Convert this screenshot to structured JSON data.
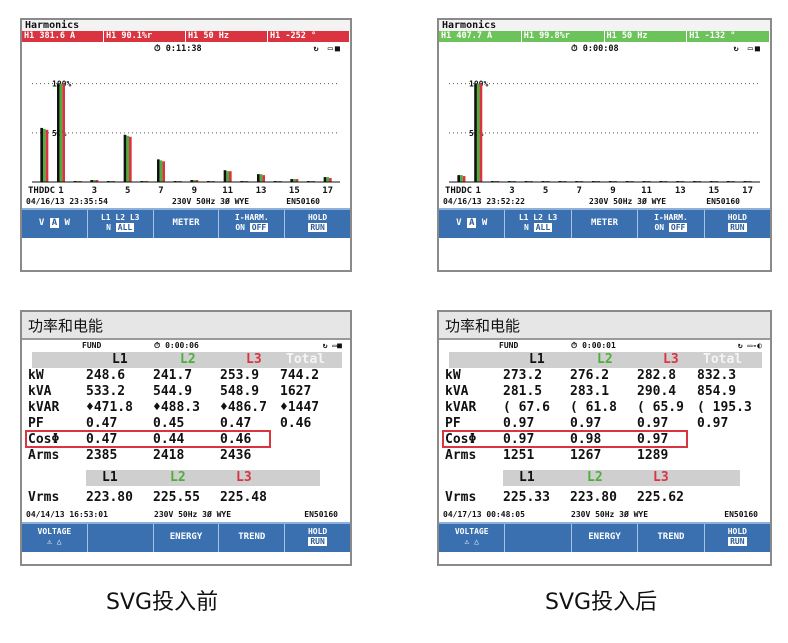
{
  "captions": {
    "before": "SVG投入前",
    "after": "SVG投入后"
  },
  "colors": {
    "l1": "#111111",
    "l2": "#4caf3a",
    "l3": "#d93440",
    "softkey_bg": "#3a6fb0",
    "before_bar": "#d93440",
    "after_bar": "#6cc35a"
  },
  "harmonics": [
    {
      "title": "Harmonics",
      "readings": [
        "H1  381.6 A",
        "H1   90.1%r",
        "H1    50 Hz",
        "H1   -252 °"
      ],
      "timer": "0:11:38",
      "status_icons": "↻ ▭■",
      "y_labels": [
        "100%",
        "50%"
      ],
      "x_labels": [
        "THDDC",
        "1",
        "3",
        "5",
        "7",
        "9",
        "11",
        "13",
        "15",
        "17"
      ],
      "date": "04/16/13  23:35:54",
      "config": "230V  50Hz 3Ø WYE",
      "standard": "EN50160",
      "chart_data": {
        "type": "bar",
        "categories": [
          "THDDC",
          "1",
          "2",
          "3",
          "4",
          "5",
          "6",
          "7",
          "8",
          "9",
          "10",
          "11",
          "12",
          "13",
          "14",
          "15",
          "16",
          "17"
        ],
        "ylim": [
          0,
          120
        ],
        "series": [
          {
            "name": "L1",
            "values": [
              55,
              100,
              1,
              2,
              1,
              48,
              1,
              23,
              1,
              2,
              1,
              12,
              1,
              8,
              1,
              3,
              1,
              5
            ]
          },
          {
            "name": "L2",
            "values": [
              54,
              100,
              1,
              2,
              1,
              47,
              1,
              22,
              1,
              2,
              1,
              11,
              1,
              8,
              1,
              3,
              1,
              5
            ]
          },
          {
            "name": "L3",
            "values": [
              53,
              100,
              1,
              2,
              1,
              46,
              1,
              21,
              1,
              2,
              1,
              11,
              1,
              7,
              1,
              3,
              1,
              4
            ]
          }
        ]
      },
      "softkeys": {
        "vaw": [
          "V",
          "A",
          "W"
        ],
        "phase_top": "L1 L2 L3",
        "phase_n": "N",
        "phase_all": "ALL",
        "meter": "METER",
        "iharm_top": "I-HARM.",
        "iharm_on": "ON",
        "iharm_off": "OFF",
        "hold_top": "HOLD",
        "hold_run": "RUN"
      }
    },
    {
      "title": "Harmonics",
      "readings": [
        "H1  407.7 A",
        "H1   99.8%r",
        "H1    50 Hz",
        "H1   -132 °"
      ],
      "timer": "0:00:08",
      "status_icons": "↻ ▭■",
      "y_labels": [
        "100%",
        "50%"
      ],
      "x_labels": [
        "THDDC",
        "1",
        "3",
        "5",
        "7",
        "9",
        "11",
        "13",
        "15",
        "17"
      ],
      "date": "04/16/13  23:52:22",
      "config": "230V  50Hz 3Ø WYE",
      "standard": "EN50160",
      "chart_data": {
        "type": "bar",
        "categories": [
          "THDDC",
          "1",
          "2",
          "3",
          "4",
          "5",
          "6",
          "7",
          "8",
          "9",
          "10",
          "11",
          "12",
          "13",
          "14",
          "15",
          "16",
          "17"
        ],
        "ylim": [
          0,
          120
        ],
        "series": [
          {
            "name": "L1",
            "values": [
              7,
              100,
              1,
              1,
              1,
              1,
              1,
              1,
              1,
              1,
              1,
              1,
              1,
              1,
              1,
              1,
              1,
              1
            ]
          },
          {
            "name": "L2",
            "values": [
              7,
              100,
              1,
              1,
              1,
              1,
              1,
              1,
              1,
              1,
              1,
              1,
              1,
              1,
              1,
              1,
              1,
              1
            ]
          },
          {
            "name": "L3",
            "values": [
              6,
              100,
              1,
              1,
              1,
              1,
              1,
              1,
              1,
              1,
              1,
              1,
              1,
              1,
              1,
              1,
              1,
              1
            ]
          }
        ]
      },
      "softkeys": {
        "vaw": [
          "V",
          "A",
          "W"
        ],
        "phase_top": "L1 L2 L3",
        "phase_n": "N",
        "phase_all": "ALL",
        "meter": "METER",
        "iharm_top": "I-HARM.",
        "iharm_on": "ON",
        "iharm_off": "OFF",
        "hold_top": "HOLD",
        "hold_run": "RUN"
      }
    }
  ],
  "power": [
    {
      "title": "功率和电能",
      "mode": "FUND",
      "timer": "0:00:06",
      "status_icons": "↻ ▭■",
      "headers": [
        "L1",
        "L2",
        "L3",
        "Total"
      ],
      "rows": [
        {
          "label": "kW",
          "values": [
            "248.6",
            "241.7",
            "253.9",
            "744.2"
          ]
        },
        {
          "label": "kVA",
          "values": [
            "533.2",
            "544.9",
            "548.9",
            "1627"
          ]
        },
        {
          "label": "kVAR",
          "values": [
            "♦471.8",
            "♦488.3",
            "♦486.7",
            "♦1447"
          ]
        },
        {
          "label": "PF",
          "values": [
            "0.47",
            "0.45",
            "0.47",
            "0.46"
          ]
        },
        {
          "label": "CosΦ",
          "values": [
            "0.47",
            "0.44",
            "0.46",
            ""
          ]
        },
        {
          "label": "Arms",
          "values": [
            "2385",
            "2418",
            "2436",
            ""
          ]
        }
      ],
      "vrms_headers": [
        "L1",
        "L2",
        "L3"
      ],
      "vrms": {
        "label": "Vrms",
        "values": [
          "223.80",
          "225.55",
          "225.48"
        ]
      },
      "date": "04/14/13  16:53:01",
      "config": "230V  50Hz 3Ø WYE",
      "standard": "EN50160",
      "softkeys": {
        "voltage_top": "VOLTAGE",
        "voltage_bottom": "⚠  △",
        "energy": "ENERGY",
        "trend": "TREND",
        "hold_top": "HOLD",
        "hold_run": "RUN"
      }
    },
    {
      "title": "功率和电能",
      "mode": "FUND",
      "timer": "0:00:01",
      "status_icons": "↻ ▭-◐",
      "headers": [
        "L1",
        "L2",
        "L3",
        "Total"
      ],
      "rows": [
        {
          "label": "kW",
          "values": [
            "273.2",
            "276.2",
            "282.8",
            "832.3"
          ]
        },
        {
          "label": "kVA",
          "values": [
            "281.5",
            "283.1",
            "290.4",
            "854.9"
          ]
        },
        {
          "label": "kVAR",
          "values": [
            "( 67.6",
            "( 61.8",
            "( 65.9",
            "( 195.3"
          ]
        },
        {
          "label": "PF",
          "values": [
            "0.97",
            "0.97",
            "0.97",
            "0.97"
          ]
        },
        {
          "label": "CosΦ",
          "values": [
            "0.97",
            "0.98",
            "0.97",
            ""
          ]
        },
        {
          "label": "Arms",
          "values": [
            "1251",
            "1267",
            "1289",
            ""
          ]
        }
      ],
      "vrms_headers": [
        "L1",
        "L2",
        "L3"
      ],
      "vrms": {
        "label": "Vrms",
        "values": [
          "225.33",
          "223.80",
          "225.62"
        ]
      },
      "date": "04/17/13  00:48:05",
      "config": "230V  50Hz 3Ø WYE",
      "standard": "EN50160",
      "softkeys": {
        "voltage_top": "VOLTAGE",
        "voltage_bottom": "⚠  △",
        "energy": "ENERGY",
        "trend": "TREND",
        "hold_top": "HOLD",
        "hold_run": "RUN"
      }
    }
  ]
}
